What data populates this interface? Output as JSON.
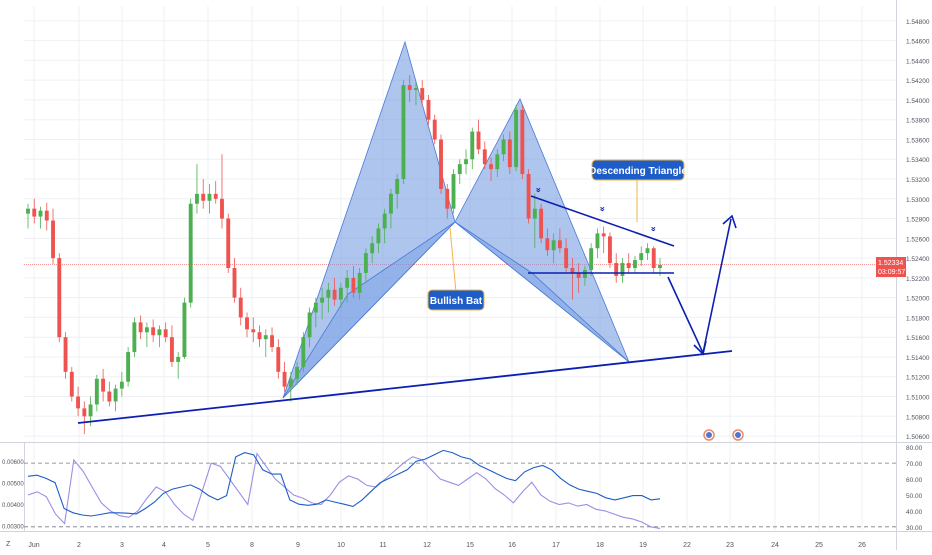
{
  "chart_data": {
    "type": "candlestick",
    "title": "",
    "x_axis_labels": [
      "Jun",
      "2",
      "3",
      "4",
      "5",
      "8",
      "9",
      "10",
      "11",
      "12",
      "15",
      "16",
      "17",
      "18",
      "19",
      "22",
      "23",
      "24",
      "25",
      "26"
    ],
    "price_axis_ticks": [
      "1.54800",
      "1.54600",
      "1.54400",
      "1.54200",
      "1.54000",
      "1.53800",
      "1.53600",
      "1.53400",
      "1.53200",
      "1.53000",
      "1.52800",
      "1.52600",
      "1.52400",
      "1.52200",
      "1.52000",
      "1.51800",
      "1.51600",
      "1.51400",
      "1.51200",
      "1.51000",
      "1.50800",
      "1.50600"
    ],
    "price_range": [
      1.5054,
      1.5495
    ],
    "last_price": "1.52334",
    "countdown": "03:09:57",
    "candles": [
      {
        "o": 1.5285,
        "h": 1.5295,
        "l": 1.527,
        "c": 1.529
      },
      {
        "o": 1.529,
        "h": 1.53,
        "l": 1.5275,
        "c": 1.5282
      },
      {
        "o": 1.5282,
        "h": 1.5292,
        "l": 1.527,
        "c": 1.5288
      },
      {
        "o": 1.5288,
        "h": 1.5296,
        "l": 1.5268,
        "c": 1.5278
      },
      {
        "o": 1.5278,
        "h": 1.529,
        "l": 1.5234,
        "c": 1.524
      },
      {
        "o": 1.524,
        "h": 1.5245,
        "l": 1.5155,
        "c": 1.516
      },
      {
        "o": 1.516,
        "h": 1.5165,
        "l": 1.5118,
        "c": 1.5125
      },
      {
        "o": 1.5125,
        "h": 1.513,
        "l": 1.5095,
        "c": 1.51
      },
      {
        "o": 1.51,
        "h": 1.511,
        "l": 1.508,
        "c": 1.5088
      },
      {
        "o": 1.5088,
        "h": 1.5095,
        "l": 1.5062,
        "c": 1.508
      },
      {
        "o": 1.508,
        "h": 1.51,
        "l": 1.507,
        "c": 1.5092
      },
      {
        "o": 1.5092,
        "h": 1.5122,
        "l": 1.5085,
        "c": 1.5118
      },
      {
        "o": 1.5118,
        "h": 1.5128,
        "l": 1.5095,
        "c": 1.5105
      },
      {
        "o": 1.5105,
        "h": 1.5115,
        "l": 1.509,
        "c": 1.5095
      },
      {
        "o": 1.5095,
        "h": 1.5112,
        "l": 1.5085,
        "c": 1.5108
      },
      {
        "o": 1.5108,
        "h": 1.5125,
        "l": 1.51,
        "c": 1.5115
      },
      {
        "o": 1.5115,
        "h": 1.515,
        "l": 1.511,
        "c": 1.5145
      },
      {
        "o": 1.5145,
        "h": 1.518,
        "l": 1.514,
        "c": 1.5175
      },
      {
        "o": 1.5175,
        "h": 1.5182,
        "l": 1.5158,
        "c": 1.5165
      },
      {
        "o": 1.5165,
        "h": 1.5175,
        "l": 1.515,
        "c": 1.517
      },
      {
        "o": 1.517,
        "h": 1.5178,
        "l": 1.5155,
        "c": 1.5162
      },
      {
        "o": 1.5162,
        "h": 1.5172,
        "l": 1.515,
        "c": 1.5168
      },
      {
        "o": 1.5168,
        "h": 1.5175,
        "l": 1.5155,
        "c": 1.516
      },
      {
        "o": 1.516,
        "h": 1.5172,
        "l": 1.513,
        "c": 1.5135
      },
      {
        "o": 1.5135,
        "h": 1.5145,
        "l": 1.5118,
        "c": 1.514
      },
      {
        "o": 1.514,
        "h": 1.52,
        "l": 1.5138,
        "c": 1.5195
      },
      {
        "o": 1.5195,
        "h": 1.53,
        "l": 1.519,
        "c": 1.5295
      },
      {
        "o": 1.5295,
        "h": 1.5335,
        "l": 1.5285,
        "c": 1.5305
      },
      {
        "o": 1.5305,
        "h": 1.532,
        "l": 1.529,
        "c": 1.5298
      },
      {
        "o": 1.5298,
        "h": 1.5315,
        "l": 1.5285,
        "c": 1.5305
      },
      {
        "o": 1.5305,
        "h": 1.5318,
        "l": 1.5295,
        "c": 1.53
      },
      {
        "o": 1.53,
        "h": 1.5345,
        "l": 1.527,
        "c": 1.528
      },
      {
        "o": 1.528,
        "h": 1.5285,
        "l": 1.5225,
        "c": 1.523
      },
      {
        "o": 1.523,
        "h": 1.524,
        "l": 1.5195,
        "c": 1.52
      },
      {
        "o": 1.52,
        "h": 1.521,
        "l": 1.5172,
        "c": 1.518
      },
      {
        "o": 1.518,
        "h": 1.5185,
        "l": 1.516,
        "c": 1.5168
      },
      {
        "o": 1.5168,
        "h": 1.518,
        "l": 1.5155,
        "c": 1.5165
      },
      {
        "o": 1.5165,
        "h": 1.5172,
        "l": 1.515,
        "c": 1.5158
      },
      {
        "o": 1.5158,
        "h": 1.5168,
        "l": 1.514,
        "c": 1.5162
      },
      {
        "o": 1.5162,
        "h": 1.517,
        "l": 1.5145,
        "c": 1.515
      },
      {
        "o": 1.515,
        "h": 1.5158,
        "l": 1.5118,
        "c": 1.5125
      },
      {
        "o": 1.5125,
        "h": 1.5135,
        "l": 1.5105,
        "c": 1.511
      },
      {
        "o": 1.511,
        "h": 1.5125,
        "l": 1.5095,
        "c": 1.5118
      },
      {
        "o": 1.5118,
        "h": 1.5135,
        "l": 1.5112,
        "c": 1.513
      },
      {
        "o": 1.513,
        "h": 1.5165,
        "l": 1.5125,
        "c": 1.516
      },
      {
        "o": 1.516,
        "h": 1.519,
        "l": 1.515,
        "c": 1.5185
      },
      {
        "o": 1.5185,
        "h": 1.52,
        "l": 1.517,
        "c": 1.5195
      },
      {
        "o": 1.5195,
        "h": 1.521,
        "l": 1.5178,
        "c": 1.52
      },
      {
        "o": 1.52,
        "h": 1.5215,
        "l": 1.5185,
        "c": 1.5208
      },
      {
        "o": 1.5208,
        "h": 1.522,
        "l": 1.5192,
        "c": 1.5198
      },
      {
        "o": 1.5198,
        "h": 1.5215,
        "l": 1.519,
        "c": 1.521
      },
      {
        "o": 1.521,
        "h": 1.5228,
        "l": 1.5195,
        "c": 1.522
      },
      {
        "o": 1.522,
        "h": 1.5232,
        "l": 1.52,
        "c": 1.5205
      },
      {
        "o": 1.5205,
        "h": 1.523,
        "l": 1.5198,
        "c": 1.5225
      },
      {
        "o": 1.5225,
        "h": 1.525,
        "l": 1.5215,
        "c": 1.5245
      },
      {
        "o": 1.5245,
        "h": 1.5262,
        "l": 1.5235,
        "c": 1.5255
      },
      {
        "o": 1.5255,
        "h": 1.5275,
        "l": 1.5245,
        "c": 1.527
      },
      {
        "o": 1.527,
        "h": 1.529,
        "l": 1.5255,
        "c": 1.5285
      },
      {
        "o": 1.5285,
        "h": 1.531,
        "l": 1.527,
        "c": 1.5305
      },
      {
        "o": 1.5305,
        "h": 1.5325,
        "l": 1.529,
        "c": 1.532
      },
      {
        "o": 1.532,
        "h": 1.542,
        "l": 1.5315,
        "c": 1.5415
      },
      {
        "o": 1.5415,
        "h": 1.5425,
        "l": 1.5398,
        "c": 1.541
      },
      {
        "o": 1.541,
        "h": 1.5418,
        "l": 1.5395,
        "c": 1.5412
      },
      {
        "o": 1.5412,
        "h": 1.542,
        "l": 1.5395,
        "c": 1.54
      },
      {
        "o": 1.54,
        "h": 1.5405,
        "l": 1.5375,
        "c": 1.538
      },
      {
        "o": 1.538,
        "h": 1.5385,
        "l": 1.5355,
        "c": 1.536
      },
      {
        "o": 1.536,
        "h": 1.5365,
        "l": 1.5305,
        "c": 1.531
      },
      {
        "o": 1.531,
        "h": 1.5315,
        "l": 1.528,
        "c": 1.529
      },
      {
        "o": 1.529,
        "h": 1.533,
        "l": 1.5285,
        "c": 1.5325
      },
      {
        "o": 1.5325,
        "h": 1.534,
        "l": 1.5315,
        "c": 1.5335
      },
      {
        "o": 1.5335,
        "h": 1.535,
        "l": 1.5325,
        "c": 1.534
      },
      {
        "o": 1.534,
        "h": 1.5372,
        "l": 1.533,
        "c": 1.5368
      },
      {
        "o": 1.5368,
        "h": 1.538,
        "l": 1.5345,
        "c": 1.535
      },
      {
        "o": 1.535,
        "h": 1.5358,
        "l": 1.533,
        "c": 1.5335
      },
      {
        "o": 1.5335,
        "h": 1.5342,
        "l": 1.5318,
        "c": 1.533
      },
      {
        "o": 1.533,
        "h": 1.535,
        "l": 1.5322,
        "c": 1.5345
      },
      {
        "o": 1.5345,
        "h": 1.5365,
        "l": 1.5338,
        "c": 1.536
      },
      {
        "o": 1.536,
        "h": 1.5368,
        "l": 1.5325,
        "c": 1.5332
      },
      {
        "o": 1.5332,
        "h": 1.5395,
        "l": 1.5328,
        "c": 1.539
      },
      {
        "o": 1.539,
        "h": 1.5395,
        "l": 1.532,
        "c": 1.5325
      },
      {
        "o": 1.5325,
        "h": 1.533,
        "l": 1.5275,
        "c": 1.528
      },
      {
        "o": 1.528,
        "h": 1.5305,
        "l": 1.525,
        "c": 1.529
      },
      {
        "o": 1.529,
        "h": 1.5295,
        "l": 1.5255,
        "c": 1.526
      },
      {
        "o": 1.526,
        "h": 1.527,
        "l": 1.5242,
        "c": 1.5248
      },
      {
        "o": 1.5248,
        "h": 1.5265,
        "l": 1.5235,
        "c": 1.5258
      },
      {
        "o": 1.5258,
        "h": 1.527,
        "l": 1.5245,
        "c": 1.525
      },
      {
        "o": 1.525,
        "h": 1.526,
        "l": 1.5225,
        "c": 1.523
      },
      {
        "o": 1.523,
        "h": 1.524,
        "l": 1.5198,
        "c": 1.5225
      },
      {
        "o": 1.5225,
        "h": 1.5235,
        "l": 1.5205,
        "c": 1.522
      },
      {
        "o": 1.522,
        "h": 1.5232,
        "l": 1.5212,
        "c": 1.5228
      },
      {
        "o": 1.5228,
        "h": 1.5255,
        "l": 1.5222,
        "c": 1.525
      },
      {
        "o": 1.525,
        "h": 1.527,
        "l": 1.524,
        "c": 1.5265
      },
      {
        "o": 1.5265,
        "h": 1.5272,
        "l": 1.5245,
        "c": 1.5262
      },
      {
        "o": 1.5262,
        "h": 1.5266,
        "l": 1.523,
        "c": 1.5235
      },
      {
        "o": 1.5235,
        "h": 1.5245,
        "l": 1.5215,
        "c": 1.5222
      },
      {
        "o": 1.5222,
        "h": 1.524,
        "l": 1.5215,
        "c": 1.5235
      },
      {
        "o": 1.5235,
        "h": 1.5245,
        "l": 1.5225,
        "c": 1.523
      },
      {
        "o": 1.523,
        "h": 1.5242,
        "l": 1.5225,
        "c": 1.5238
      },
      {
        "o": 1.5238,
        "h": 1.5252,
        "l": 1.5232,
        "c": 1.5245
      },
      {
        "o": 1.5245,
        "h": 1.5255,
        "l": 1.5238,
        "c": 1.525
      },
      {
        "o": 1.525,
        "h": 1.5252,
        "l": 1.5225,
        "c": 1.523
      },
      {
        "o": 1.523,
        "h": 1.524,
        "l": 1.5222,
        "c": 1.5233
      }
    ],
    "annotations": {
      "bullish_bat_label": "Bullish Bat",
      "descending_triangle_label": "Descending Triangle"
    },
    "oscillator": {
      "left_ticks": [
        "0.00600",
        "0.00500",
        "0.00400",
        "0.00300"
      ],
      "right_ticks": [
        "80.00",
        "70.00",
        "60.00",
        "50.00",
        "40.00",
        "30.00"
      ],
      "left_range": [
        0.0028,
        0.0068
      ],
      "right_range": [
        28,
        82
      ],
      "dashed_levels": [
        70,
        30
      ],
      "atr_series": [
        0.0053,
        0.00535,
        0.0052,
        0.005,
        0.0038,
        0.0036,
        0.0035,
        0.00345,
        0.00352,
        0.0036,
        0.0036,
        0.00358,
        0.00355,
        0.0038,
        0.0041,
        0.0045,
        0.0047,
        0.0048,
        0.0049,
        0.0047,
        0.0044,
        0.0042,
        0.0044,
        0.0062,
        0.0064,
        0.0063,
        0.0056,
        0.0054,
        0.0054,
        0.0042,
        0.004,
        0.00395,
        0.004,
        0.0042,
        0.0041,
        0.004,
        0.0039,
        0.0042,
        0.0046,
        0.005,
        0.0052,
        0.0054,
        0.0056,
        0.006,
        0.0061,
        0.0063,
        0.0065,
        0.0064,
        0.0062,
        0.0061,
        0.0058,
        0.0056,
        0.0054,
        0.0052,
        0.0051,
        0.0055,
        0.0057,
        0.0058,
        0.0056,
        0.0052,
        0.0049,
        0.0047,
        0.0046,
        0.0045,
        0.0043,
        0.0042,
        0.0043,
        0.0044,
        0.0044,
        0.0042,
        0.00425
      ],
      "rsi_series": [
        50,
        52,
        49,
        38,
        32,
        72,
        65,
        55,
        45,
        40,
        37,
        36,
        40,
        48,
        55,
        52,
        44,
        38,
        34,
        52,
        70,
        68,
        60,
        52,
        44,
        76,
        68,
        60,
        55,
        50,
        48,
        45,
        44,
        50,
        58,
        62,
        60,
        56,
        55,
        60,
        65,
        70,
        74,
        72,
        66,
        60,
        58,
        56,
        60,
        64,
        60,
        54,
        50,
        45,
        52,
        58,
        50,
        46,
        44,
        45,
        43,
        44,
        41,
        40,
        38,
        36,
        35,
        33,
        30,
        29
      ]
    },
    "bottom_axis": [
      "Jun",
      "2",
      "3",
      "4",
      "5",
      "8",
      "9",
      "10",
      "11",
      "12",
      "15",
      "16",
      "17",
      "18",
      "19",
      "22",
      "23",
      "24",
      "25",
      "26"
    ]
  },
  "colors": {
    "bull": "#4caf50",
    "bear": "#ef5350",
    "pattern_fill": "#6b95e0",
    "trendline": "#0b1fb2",
    "label_bg": "#1e5cc8",
    "label_border": "#f0b64a",
    "price_tag": "#ef5350",
    "atr_line": "#1e5cc8",
    "rsi_line": "#9a8fe6",
    "grid": "#eef0f4"
  }
}
